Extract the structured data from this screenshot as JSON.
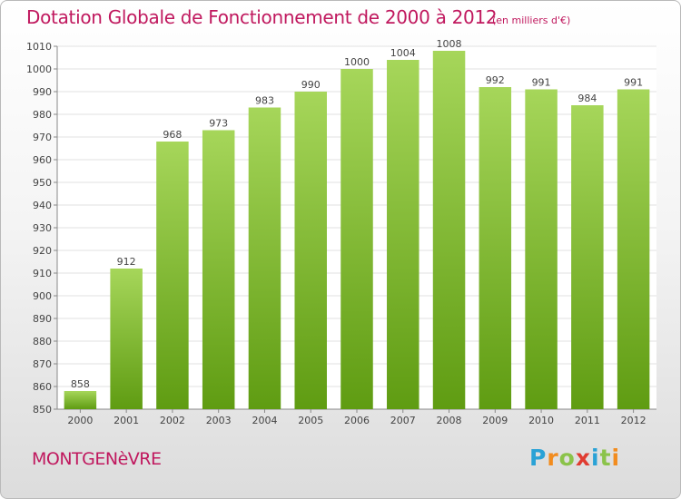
{
  "header": {
    "title": "Dotation Globale de Fonctionnement de 2000 à 2012",
    "units": "(en milliers d'€)"
  },
  "footer": {
    "commune": "MONTGENèVRE",
    "logo_letters": [
      "P",
      "r",
      "o",
      "x",
      "i",
      "t",
      "i"
    ],
    "logo_colors": [
      "#2aa2d6",
      "#f28c1e",
      "#8bc34a",
      "#e03c31",
      "#2aa2d6",
      "#8bc34a",
      "#f28c1e"
    ]
  },
  "colors": {
    "bar_top": "#a6d65a",
    "bar_bottom": "#5f9c12",
    "grid": "#e2e2e2",
    "text": "#444444",
    "accent": "#c0185e"
  },
  "chart_data": {
    "type": "bar",
    "categories": [
      "2000",
      "2001",
      "2002",
      "2003",
      "2004",
      "2005",
      "2006",
      "2007",
      "2008",
      "2009",
      "2010",
      "2011",
      "2012"
    ],
    "values": [
      858,
      912,
      968,
      973,
      983,
      990,
      1000,
      1004,
      1008,
      992,
      991,
      984,
      991
    ],
    "title": "Dotation Globale de Fonctionnement de 2000 à 2012",
    "subtitle": "(en milliers d'€)",
    "ylim": [
      850,
      1010
    ],
    "yticks": [
      850,
      860,
      870,
      880,
      890,
      900,
      910,
      920,
      930,
      940,
      950,
      960,
      970,
      980,
      990,
      1000,
      1010
    ],
    "grid": true,
    "data_labels": true
  }
}
